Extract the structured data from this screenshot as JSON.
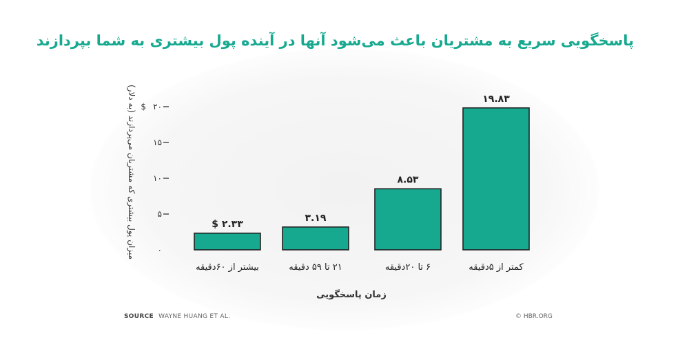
{
  "chart_data": {
    "type": "bar",
    "title": "پاسخگویی سریع به مشتریان باعث می‌شود آنها در آینده پول بیشتری به شما بپردازند",
    "ylabel": "میزان پول بیشتری که مشتریان می‌پردازند (به دلار)",
    "xlabel": "زمان پاسخگویی",
    "categories": [
      "بیشتر از ۶۰دقیقه",
      "۲۱ تا ۵۹ دقیقه",
      "۶ تا ۲۰دقیقه",
      "کمتر از ۵دقیقه"
    ],
    "values": [
      2.33,
      3.19,
      8.53,
      19.83
    ],
    "value_labels": [
      "$ ۲.۳۳",
      "۳.۱۹",
      "۸.۵۳",
      "۱۹.۸۳"
    ],
    "yticks": [
      {
        "value": 0,
        "label": "۰"
      },
      {
        "value": 5,
        "label": "۵"
      },
      {
        "value": 10,
        "label": "۱۰"
      },
      {
        "value": 15,
        "label": "۱۵"
      },
      {
        "value": 20,
        "label": "۲۰"
      }
    ],
    "ytick_top_prefix": "$",
    "ylim": [
      0,
      20
    ],
    "bar_color": "#17a98f",
    "bar_stroke": "#222222"
  },
  "footer": {
    "source_label": "SOURCE",
    "source_text": "WAYNE HUANG ET AL.",
    "copyright": "© HBR.ORG"
  }
}
